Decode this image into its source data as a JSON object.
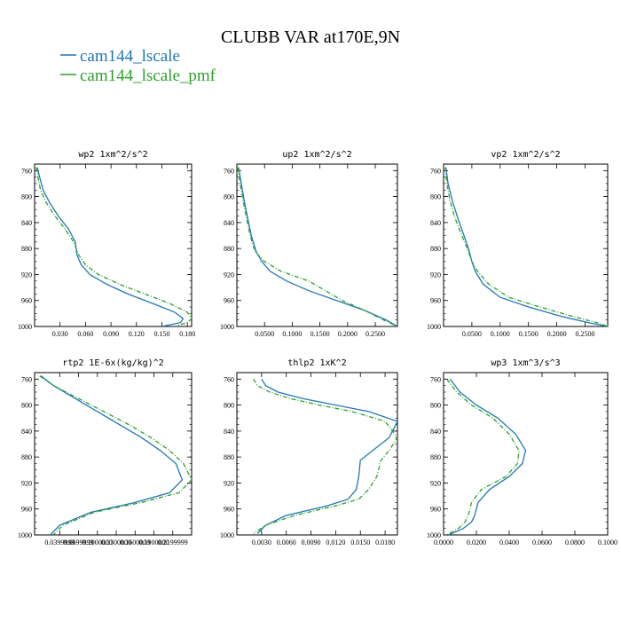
{
  "figure": {
    "title": "CLUBB VAR at170E,9N",
    "legend": [
      {
        "name": "cam144_lscale",
        "color": "#1f77b4",
        "dash": "solid"
      },
      {
        "name": "cam144_lscale_pmf",
        "color": "#2ca02c",
        "dash": "dashdot"
      }
    ]
  },
  "chart_data": [
    {
      "type": "line",
      "title": "wp2  1xm^2/s^2",
      "ylim": [
        1000,
        750
      ],
      "xlim": [
        0,
        0.185
      ],
      "yticks": [
        760,
        800,
        840,
        880,
        920,
        960,
        1000
      ],
      "xticks": [
        0.03,
        0.06,
        0.09,
        0.12,
        0.15,
        0.18
      ],
      "xtick_labels": [
        "0.030",
        "0.060",
        "0.090",
        "0.120",
        "0.150",
        "0.180"
      ],
      "series": [
        {
          "name": "cam144_lscale",
          "x": [
            0.003,
            0.006,
            0.01,
            0.018,
            0.028,
            0.04,
            0.048,
            0.05,
            0.055,
            0.065,
            0.085,
            0.11,
            0.14,
            0.165,
            0.175,
            0.172,
            0.15
          ],
          "y": [
            755,
            770,
            790,
            810,
            830,
            850,
            870,
            890,
            905,
            920,
            935,
            950,
            965,
            978,
            988,
            994,
            1000
          ]
        },
        {
          "name": "cam144_lscale_pmf",
          "x": [
            0.002,
            0.004,
            0.007,
            0.014,
            0.024,
            0.036,
            0.046,
            0.052,
            0.06,
            0.075,
            0.1,
            0.13,
            0.16,
            0.18,
            0.185,
            0.18,
            0.165
          ],
          "y": [
            755,
            770,
            790,
            810,
            830,
            850,
            870,
            890,
            905,
            920,
            935,
            950,
            965,
            978,
            988,
            994,
            1000
          ]
        }
      ]
    },
    {
      "type": "line",
      "title": "up2  1xm^2/s^2",
      "ylim": [
        1000,
        750
      ],
      "xlim": [
        0,
        0.29
      ],
      "yticks": [
        760,
        800,
        840,
        880,
        920,
        960,
        1000
      ],
      "xticks": [
        0.05,
        0.1,
        0.15,
        0.2,
        0.25
      ],
      "xtick_labels": [
        "0.0500",
        "0.1000",
        "0.1500",
        "0.2000",
        "0.2500"
      ],
      "series": [
        {
          "name": "cam144_lscale",
          "x": [
            0.003,
            0.008,
            0.014,
            0.02,
            0.026,
            0.035,
            0.045,
            0.06,
            0.09,
            0.13,
            0.18,
            0.23,
            0.27,
            0.29
          ],
          "y": [
            755,
            780,
            810,
            835,
            860,
            885,
            900,
            915,
            930,
            945,
            960,
            975,
            990,
            1000
          ]
        },
        {
          "name": "cam144_lscale_pmf",
          "x": [
            0.002,
            0.006,
            0.012,
            0.018,
            0.024,
            0.033,
            0.05,
            0.08,
            0.13,
            0.16,
            0.19,
            0.23,
            0.265,
            0.29
          ],
          "y": [
            755,
            780,
            810,
            835,
            860,
            885,
            900,
            915,
            930,
            945,
            960,
            975,
            990,
            1000
          ]
        }
      ]
    },
    {
      "type": "line",
      "title": "vp2  1xm^2/s^2",
      "ylim": [
        1000,
        750
      ],
      "xlim": [
        0,
        0.29
      ],
      "yticks": [
        760,
        800,
        840,
        880,
        920,
        960,
        1000
      ],
      "xticks": [
        0.05,
        0.1,
        0.15,
        0.2,
        0.25
      ],
      "xtick_labels": [
        "0.0500",
        "0.1000",
        "0.1500",
        "0.2000",
        "0.2500"
      ],
      "series": [
        {
          "name": "cam144_lscale",
          "x": [
            0.004,
            0.008,
            0.015,
            0.024,
            0.034,
            0.044,
            0.05,
            0.056,
            0.07,
            0.1,
            0.15,
            0.21,
            0.26,
            0.29
          ],
          "y": [
            755,
            780,
            805,
            830,
            855,
            880,
            900,
            915,
            935,
            955,
            970,
            985,
            995,
            1000
          ]
        },
        {
          "name": "cam144_lscale_pmf",
          "x": [
            0.003,
            0.006,
            0.011,
            0.019,
            0.03,
            0.042,
            0.05,
            0.06,
            0.08,
            0.115,
            0.17,
            0.23,
            0.275,
            0.29
          ],
          "y": [
            755,
            780,
            805,
            830,
            855,
            880,
            900,
            915,
            935,
            955,
            970,
            985,
            995,
            1000
          ]
        }
      ]
    },
    {
      "type": "line",
      "title": "rtp2  1E-6x(kg/kg)^2",
      "ylim": [
        1000,
        750
      ],
      "xlim": [
        0,
        25
      ],
      "yticks": [
        760,
        800,
        840,
        880,
        920,
        960,
        1000
      ],
      "xticks": [
        4,
        7,
        10,
        13,
        16,
        19,
        22
      ],
      "xtick_labels": [
        "0.0399999",
        "0.0699999",
        "0.1000000",
        "0.1300000",
        "0.1600000",
        "0.1900000",
        "0.2199999"
      ],
      "series": [
        {
          "name": "cam144_lscale",
          "x": [
            1.0,
            3.0,
            6.5,
            10.0,
            13.5,
            17.0,
            20.0,
            22.5,
            23.5,
            21.5,
            16.0,
            9.0,
            4.0,
            2.5
          ],
          "y": [
            755,
            770,
            790,
            810,
            830,
            850,
            870,
            890,
            915,
            935,
            950,
            965,
            985,
            1000
          ]
        },
        {
          "name": "cam144_lscale_pmf",
          "x": [
            0.8,
            3.0,
            7.0,
            11.0,
            15.0,
            18.5,
            21.5,
            23.7,
            25.0,
            23.0,
            17.0,
            9.5,
            4.5,
            3.0
          ],
          "y": [
            755,
            770,
            790,
            810,
            830,
            850,
            870,
            890,
            915,
            935,
            950,
            965,
            985,
            1000
          ]
        }
      ]
    },
    {
      "type": "line",
      "title": "thlp2  1xK^2",
      "ylim": [
        1000,
        750
      ],
      "xlim": [
        0,
        0.0195
      ],
      "yticks": [
        760,
        800,
        840,
        880,
        920,
        960,
        1000
      ],
      "xticks": [
        0.003,
        0.006,
        0.009,
        0.012,
        0.015,
        0.018
      ],
      "xtick_labels": [
        "0.0030",
        "0.0060",
        "0.0090",
        "0.0120",
        "0.0150",
        "0.0180"
      ],
      "series": [
        {
          "name": "cam144_lscale",
          "x": [
            0.003,
            0.0035,
            0.005,
            0.008,
            0.012,
            0.016,
            0.0195,
            0.0185,
            0.0165,
            0.015,
            0.0148,
            0.0145,
            0.0135,
            0.011,
            0.006,
            0.0035,
            0.0025
          ],
          "y": [
            760,
            770,
            780,
            790,
            800,
            810,
            825,
            850,
            870,
            885,
            910,
            930,
            945,
            955,
            970,
            985,
            998
          ]
        },
        {
          "name": "cam144_lscale_pmf",
          "x": [
            0.002,
            0.0025,
            0.004,
            0.0065,
            0.01,
            0.014,
            0.018,
            0.0195,
            0.0185,
            0.0175,
            0.017,
            0.016,
            0.0148,
            0.012,
            0.007,
            0.0035,
            0.002
          ],
          "y": [
            760,
            770,
            780,
            790,
            800,
            810,
            825,
            850,
            870,
            885,
            910,
            930,
            945,
            955,
            970,
            985,
            998
          ]
        }
      ]
    },
    {
      "type": "line",
      "title": "wp3  1xm^3/s^3",
      "ylim": [
        1000,
        750
      ],
      "xlim": [
        0,
        0.1
      ],
      "yticks": [
        760,
        800,
        840,
        880,
        920,
        960,
        1000
      ],
      "xticks": [
        0.0,
        0.02,
        0.04,
        0.06,
        0.08,
        0.1
      ],
      "xtick_labels": [
        "0.0000",
        "0.0200",
        "0.0400",
        "0.0600",
        "0.0800",
        "0.1000"
      ],
      "series": [
        {
          "name": "cam144_lscale",
          "x": [
            0.004,
            0.01,
            0.02,
            0.033,
            0.044,
            0.05,
            0.048,
            0.04,
            0.028,
            0.021,
            0.019,
            0.017,
            0.012,
            0.003
          ],
          "y": [
            760,
            780,
            800,
            820,
            845,
            870,
            890,
            910,
            930,
            950,
            970,
            980,
            990,
            1000
          ]
        },
        {
          "name": "cam144_lscale_pmf",
          "x": [
            0.002,
            0.008,
            0.017,
            0.03,
            0.04,
            0.046,
            0.045,
            0.038,
            0.023,
            0.017,
            0.015,
            0.013,
            0.009,
            0.002
          ],
          "y": [
            760,
            780,
            800,
            820,
            845,
            870,
            890,
            910,
            930,
            950,
            970,
            980,
            990,
            1000
          ]
        }
      ]
    }
  ]
}
